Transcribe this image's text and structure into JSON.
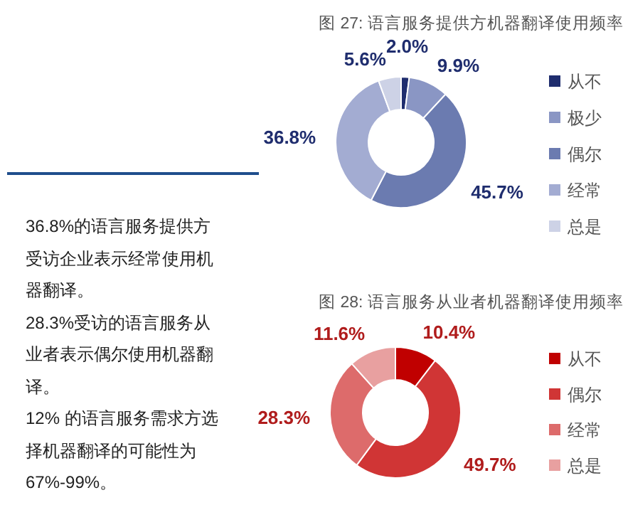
{
  "chart_data": [
    {
      "type": "donut",
      "title": "图 27: 语言服务提供方机器翻译使用频率",
      "categories": [
        "从不",
        "极少",
        "偶尔",
        "经常",
        "总是"
      ],
      "values": [
        2.0,
        9.9,
        45.7,
        36.8,
        5.6
      ],
      "colors": [
        "#1f2d6e",
        "#8a96c4",
        "#6b7bb0",
        "#a3acd2",
        "#cdd2e6"
      ],
      "value_labels": [
        "2.0%",
        "9.9%",
        "45.7%",
        "36.8%",
        "5.6%"
      ],
      "legend": "right"
    },
    {
      "type": "donut",
      "title": "图 28: 语言服务从业者机器翻译使用频率",
      "categories": [
        "从不",
        "偶尔",
        "经常",
        "总是"
      ],
      "values": [
        10.4,
        49.7,
        28.3,
        11.6
      ],
      "colors": [
        "#c00000",
        "#d03535",
        "#dd6b6b",
        "#e8a0a0"
      ],
      "value_labels": [
        "10.4%",
        "49.7%",
        "28.3%",
        "11.6%"
      ],
      "legend": "right"
    },
    {
      "type": "other",
      "annotations": [
        "36.8%的语言服务提供方受访企业表示经常使用机器翻译。",
        "28.3%受访的语言服务从业者表示偶尔使用机器翻译。",
        "12% 的语言服务需求方选择机器翻译的可能性为 67%-99%。"
      ]
    }
  ]
}
